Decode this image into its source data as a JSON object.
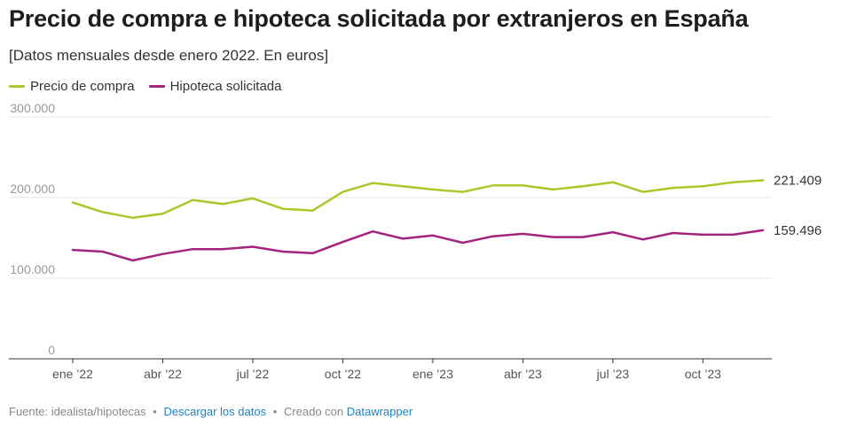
{
  "header": {
    "title": "Precio de compra e hipoteca solicitada por extranjeros en España",
    "subtitle": "[Datos mensuales desde enero 2022. En euros]"
  },
  "legend": [
    {
      "label": "Precio de compra"
    },
    {
      "label": "Hipoteca solicitada"
    }
  ],
  "footer": {
    "source_label": "Fuente: idealista/hipotecas",
    "separator": "•",
    "download_label": "Descargar los datos",
    "created_label": "Creado con",
    "tool_label": "Datawrapper"
  },
  "chart_data": {
    "type": "line",
    "title": "Precio de compra e hipoteca solicitada por extranjeros en España",
    "subtitle": "[Datos mensuales desde enero 2022. En euros]",
    "x": [
      "2022-01",
      "2022-02",
      "2022-03",
      "2022-04",
      "2022-05",
      "2022-06",
      "2022-07",
      "2022-08",
      "2022-09",
      "2022-10",
      "2022-11",
      "2022-12",
      "2023-01",
      "2023-02",
      "2023-03",
      "2023-04",
      "2023-05",
      "2023-06",
      "2023-07",
      "2023-08",
      "2023-09",
      "2023-10",
      "2023-11",
      "2023-12"
    ],
    "x_tick_labels": [
      "ene ’22",
      "abr ’22",
      "jul ’22",
      "oct ’22",
      "ene ’23",
      "abr ’23",
      "jul ’23",
      "oct ’23"
    ],
    "x_tick_positions": [
      "2022-01",
      "2022-04",
      "2022-07",
      "2022-10",
      "2023-01",
      "2023-04",
      "2023-07",
      "2023-10"
    ],
    "y_ticks": [
      0,
      100000,
      200000,
      300000
    ],
    "y_tick_labels": [
      "0",
      "100.000",
      "200.000",
      "300.000"
    ],
    "ylim": [
      0,
      300000
    ],
    "grid": true,
    "legend_position": "top-left",
    "series": [
      {
        "name": "Precio de compra",
        "color": "#a9c82b",
        "values": [
          194000,
          182000,
          175000,
          180000,
          197000,
          192000,
          199000,
          186000,
          184000,
          207000,
          218000,
          214000,
          210000,
          207000,
          215000,
          215000,
          210000,
          214000,
          219000,
          207000,
          212000,
          214000,
          219000,
          221409
        ],
        "end_label": "221.409"
      },
      {
        "name": "Hipoteca solicitada",
        "color": "#a3247f",
        "values": [
          135000,
          133000,
          122000,
          130000,
          136000,
          136000,
          139000,
          133000,
          131000,
          145000,
          158000,
          149000,
          153000,
          144000,
          152000,
          155000,
          151000,
          151000,
          157000,
          148000,
          156000,
          154000,
          154000,
          159496
        ],
        "end_label": "159.496"
      }
    ]
  }
}
